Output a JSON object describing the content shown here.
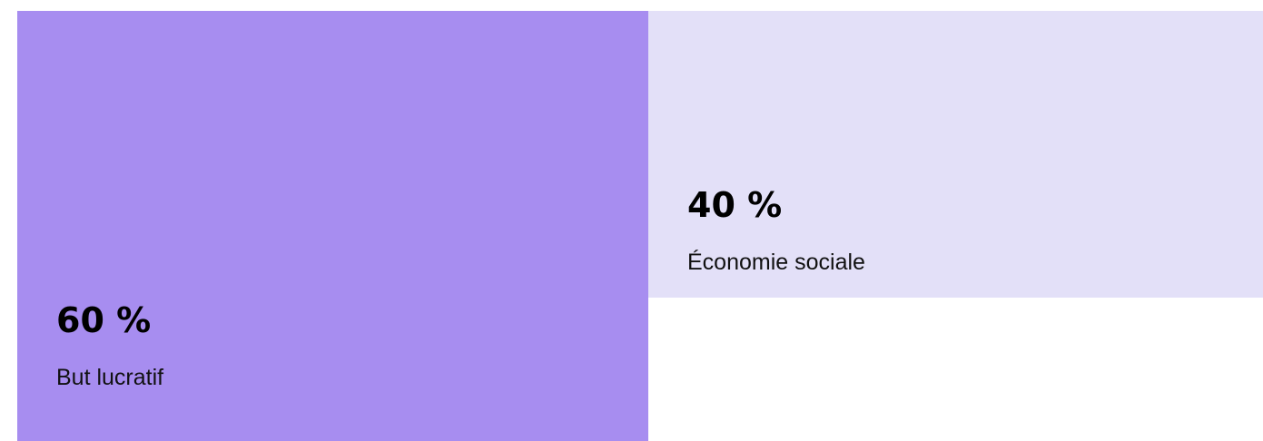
{
  "chart_data": {
    "type": "bar",
    "categories": [
      "But lucratif",
      "Économie sociale"
    ],
    "values": [
      60,
      40
    ],
    "value_labels": [
      "60 %",
      "40 %"
    ],
    "colors": [
      "#a78df0",
      "#e3e0f8"
    ]
  }
}
